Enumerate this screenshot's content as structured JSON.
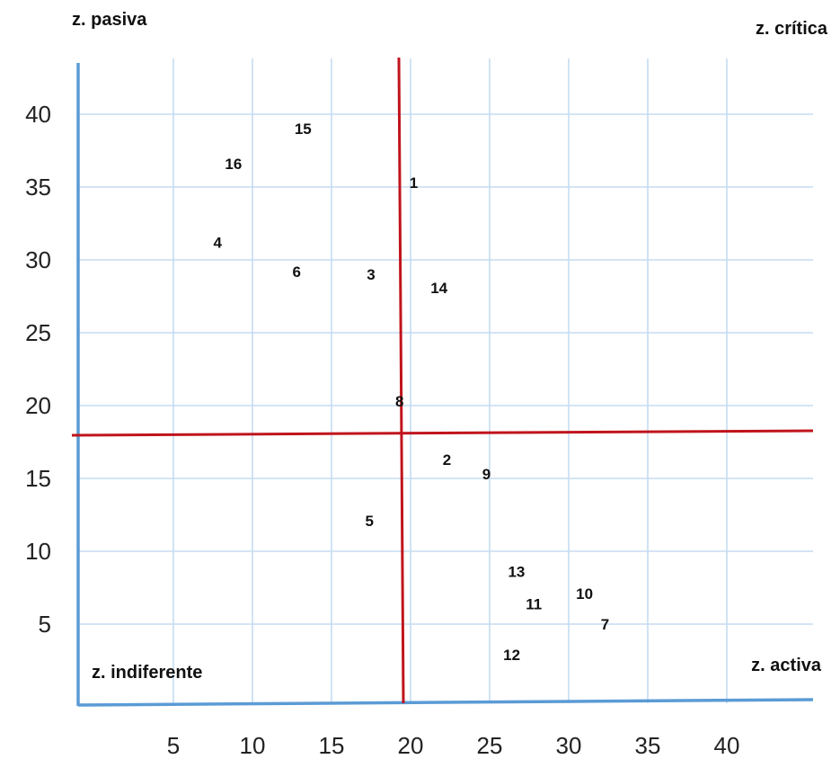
{
  "chart_data": {
    "type": "scatter",
    "title": "",
    "xlabel": "",
    "ylabel": "",
    "xlim": [
      0,
      44
    ],
    "ylim": [
      0,
      43
    ],
    "grid": true,
    "x_ticks": [
      5,
      10,
      15,
      20,
      25,
      30,
      35,
      40
    ],
    "y_ticks": [
      5,
      10,
      15,
      20,
      25,
      30,
      35,
      40
    ],
    "threshold_lines": {
      "x": 20,
      "y": 18.5,
      "color": "#c0141c"
    },
    "axis_color": "#5b9bd5",
    "grid_color": "#c5dcf2",
    "zones": {
      "top_left": "z. pasiva",
      "top_right": "z. crítica",
      "bottom_left": "z. indiferente",
      "bottom_right": "z. activa"
    },
    "points": [
      {
        "label": "1",
        "x": 20.2,
        "y": 35.3
      },
      {
        "label": "2",
        "x": 22.3,
        "y": 16.3
      },
      {
        "label": "3",
        "x": 17.5,
        "y": 29.0
      },
      {
        "label": "4",
        "x": 7.8,
        "y": 31.2
      },
      {
        "label": "5",
        "x": 17.4,
        "y": 12.1
      },
      {
        "label": "6",
        "x": 12.8,
        "y": 29.2
      },
      {
        "label": "7",
        "x": 32.3,
        "y": 5.0
      },
      {
        "label": "8",
        "x": 19.3,
        "y": 20.3
      },
      {
        "label": "9",
        "x": 24.8,
        "y": 15.3
      },
      {
        "label": "10",
        "x": 31.0,
        "y": 7.1
      },
      {
        "label": "11",
        "x": 27.8,
        "y": 6.4
      },
      {
        "label": "12",
        "x": 26.4,
        "y": 2.9
      },
      {
        "label": "13",
        "x": 26.7,
        "y": 8.6
      },
      {
        "label": "14",
        "x": 21.8,
        "y": 28.1
      },
      {
        "label": "15",
        "x": 13.2,
        "y": 39.0
      },
      {
        "label": "16",
        "x": 8.8,
        "y": 36.6
      }
    ]
  }
}
